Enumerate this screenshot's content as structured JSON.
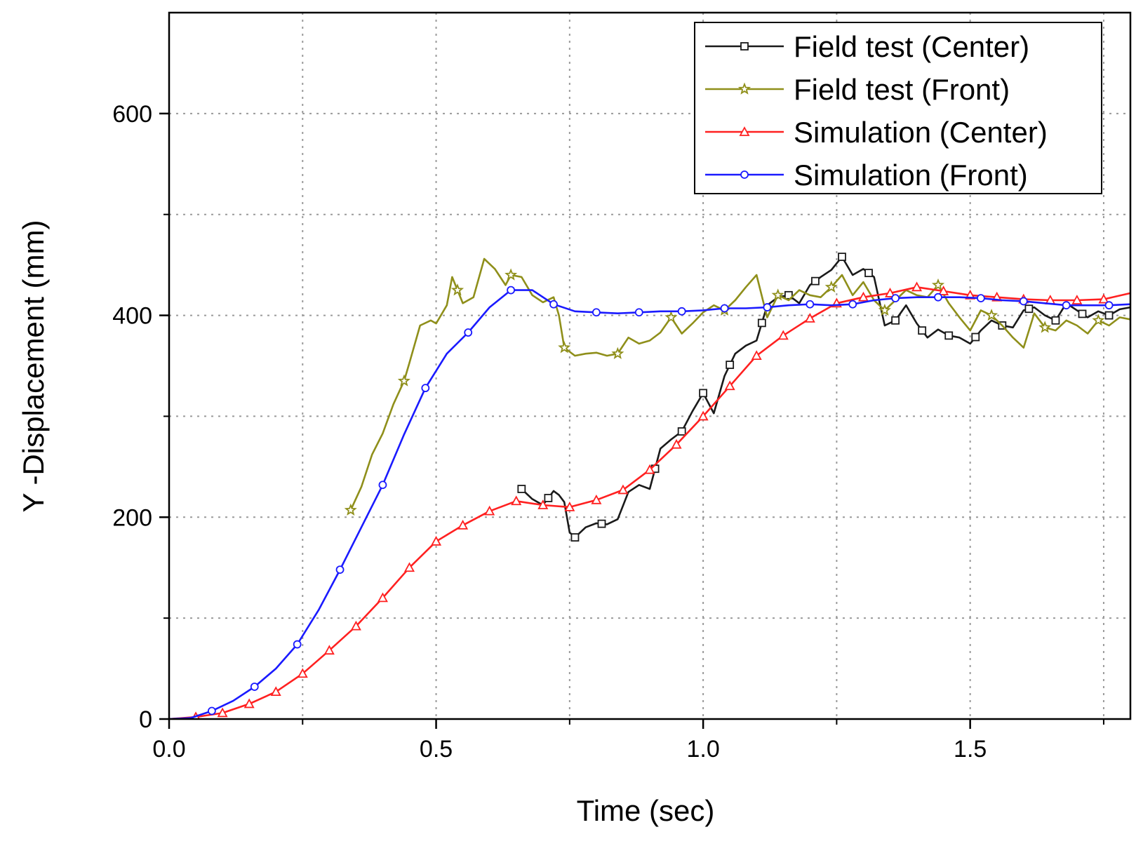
{
  "chart_data": {
    "type": "line",
    "title": "",
    "xlabel": "Time (sec)",
    "ylabel": "Y -Displacement (mm)",
    "xlim": [
      0.0,
      1.8
    ],
    "ylim": [
      0,
      700
    ],
    "x_ticks": [
      0.0,
      0.5,
      1.0,
      1.5
    ],
    "x_tick_labels": [
      "0.0",
      "0.5",
      "1.0",
      "1.5"
    ],
    "x_minor_ticks": [
      0.25,
      0.75,
      1.25,
      1.75
    ],
    "y_ticks": [
      0,
      200,
      400,
      600
    ],
    "y_tick_labels": [
      "0",
      "200",
      "400",
      "600"
    ],
    "y_minor_ticks": [
      100,
      300,
      500
    ],
    "grid": true,
    "legend_position": "top-right",
    "series": [
      {
        "name": "Field test (Center)",
        "color": "#1a1a1a",
        "marker": "square",
        "points": [
          [
            0.66,
            228
          ],
          [
            0.68,
            218
          ],
          [
            0.7,
            212
          ],
          [
            0.72,
            226
          ],
          [
            0.73,
            222
          ],
          [
            0.74,
            215
          ],
          [
            0.75,
            185
          ],
          [
            0.76,
            180
          ],
          [
            0.78,
            190
          ],
          [
            0.8,
            194
          ],
          [
            0.82,
            193
          ],
          [
            0.84,
            198
          ],
          [
            0.86,
            225
          ],
          [
            0.88,
            232
          ],
          [
            0.9,
            228
          ],
          [
            0.92,
            268
          ],
          [
            0.94,
            277
          ],
          [
            0.96,
            285
          ],
          [
            0.98,
            305
          ],
          [
            1.0,
            323
          ],
          [
            1.02,
            303
          ],
          [
            1.04,
            340
          ],
          [
            1.06,
            362
          ],
          [
            1.08,
            370
          ],
          [
            1.1,
            375
          ],
          [
            1.12,
            410
          ],
          [
            1.14,
            418
          ],
          [
            1.16,
            420
          ],
          [
            1.18,
            412
          ],
          [
            1.2,
            430
          ],
          [
            1.22,
            438
          ],
          [
            1.24,
            445
          ],
          [
            1.26,
            458
          ],
          [
            1.28,
            440
          ],
          [
            1.3,
            446
          ],
          [
            1.32,
            438
          ],
          [
            1.34,
            390
          ],
          [
            1.36,
            395
          ],
          [
            1.38,
            410
          ],
          [
            1.4,
            392
          ],
          [
            1.42,
            378
          ],
          [
            1.44,
            386
          ],
          [
            1.46,
            380
          ],
          [
            1.48,
            378
          ],
          [
            1.5,
            372
          ],
          [
            1.52,
            385
          ],
          [
            1.54,
            395
          ],
          [
            1.56,
            390
          ],
          [
            1.58,
            388
          ],
          [
            1.6,
            405
          ],
          [
            1.62,
            408
          ],
          [
            1.64,
            400
          ],
          [
            1.66,
            395
          ],
          [
            1.68,
            412
          ],
          [
            1.7,
            405
          ],
          [
            1.72,
            398
          ],
          [
            1.74,
            404
          ],
          [
            1.76,
            400
          ],
          [
            1.78,
            406
          ],
          [
            1.8,
            408
          ]
        ],
        "marker_x": [
          0.66,
          0.71,
          0.76,
          0.81,
          0.91,
          0.96,
          1.0,
          1.05,
          1.11,
          1.16,
          1.21,
          1.26,
          1.31,
          1.36,
          1.41,
          1.46,
          1.51,
          1.56,
          1.61,
          1.66,
          1.71,
          1.76
        ]
      },
      {
        "name": "Field test (Front)",
        "color": "#8f8f1a",
        "marker": "star",
        "points": [
          [
            0.34,
            207
          ],
          [
            0.36,
            230
          ],
          [
            0.38,
            262
          ],
          [
            0.4,
            283
          ],
          [
            0.42,
            312
          ],
          [
            0.44,
            335
          ],
          [
            0.45,
            353
          ],
          [
            0.47,
            390
          ],
          [
            0.49,
            395
          ],
          [
            0.5,
            392
          ],
          [
            0.52,
            410
          ],
          [
            0.53,
            438
          ],
          [
            0.55,
            412
          ],
          [
            0.57,
            418
          ],
          [
            0.59,
            456
          ],
          [
            0.61,
            446
          ],
          [
            0.63,
            430
          ],
          [
            0.64,
            440
          ],
          [
            0.66,
            438
          ],
          [
            0.68,
            420
          ],
          [
            0.7,
            413
          ],
          [
            0.72,
            418
          ],
          [
            0.73,
            400
          ],
          [
            0.74,
            368
          ],
          [
            0.76,
            360
          ],
          [
            0.78,
            362
          ],
          [
            0.8,
            363
          ],
          [
            0.82,
            360
          ],
          [
            0.84,
            362
          ],
          [
            0.86,
            378
          ],
          [
            0.88,
            372
          ],
          [
            0.9,
            375
          ],
          [
            0.92,
            383
          ],
          [
            0.94,
            398
          ],
          [
            0.96,
            382
          ],
          [
            0.98,
            392
          ],
          [
            1.0,
            403
          ],
          [
            1.02,
            410
          ],
          [
            1.04,
            405
          ],
          [
            1.06,
            415
          ],
          [
            1.08,
            428
          ],
          [
            1.1,
            440
          ],
          [
            1.12,
            398
          ],
          [
            1.14,
            420
          ],
          [
            1.16,
            415
          ],
          [
            1.18,
            425
          ],
          [
            1.2,
            420
          ],
          [
            1.22,
            418
          ],
          [
            1.24,
            428
          ],
          [
            1.26,
            440
          ],
          [
            1.28,
            420
          ],
          [
            1.3,
            433
          ],
          [
            1.32,
            415
          ],
          [
            1.34,
            405
          ],
          [
            1.36,
            415
          ],
          [
            1.38,
            425
          ],
          [
            1.4,
            420
          ],
          [
            1.42,
            418
          ],
          [
            1.44,
            430
          ],
          [
            1.46,
            412
          ],
          [
            1.48,
            398
          ],
          [
            1.5,
            385
          ],
          [
            1.52,
            405
          ],
          [
            1.54,
            400
          ],
          [
            1.56,
            390
          ],
          [
            1.58,
            378
          ],
          [
            1.6,
            368
          ],
          [
            1.62,
            402
          ],
          [
            1.64,
            388
          ],
          [
            1.66,
            385
          ],
          [
            1.68,
            395
          ],
          [
            1.7,
            390
          ],
          [
            1.72,
            382
          ],
          [
            1.74,
            395
          ],
          [
            1.76,
            390
          ],
          [
            1.78,
            398
          ],
          [
            1.8,
            396
          ]
        ],
        "marker_x": [
          0.34,
          0.44,
          0.54,
          0.64,
          0.74,
          0.84,
          0.94,
          1.04,
          1.14,
          1.24,
          1.34,
          1.44,
          1.54,
          1.64,
          1.74
        ]
      },
      {
        "name": "Simulation (Center)",
        "color": "#ff2020",
        "marker": "triangle",
        "points": [
          [
            0.0,
            0
          ],
          [
            0.05,
            2
          ],
          [
            0.1,
            6
          ],
          [
            0.15,
            15
          ],
          [
            0.2,
            27
          ],
          [
            0.25,
            45
          ],
          [
            0.3,
            68
          ],
          [
            0.35,
            92
          ],
          [
            0.4,
            120
          ],
          [
            0.45,
            150
          ],
          [
            0.5,
            176
          ],
          [
            0.55,
            192
          ],
          [
            0.6,
            206
          ],
          [
            0.65,
            216
          ],
          [
            0.7,
            212
          ],
          [
            0.75,
            210
          ],
          [
            0.8,
            217
          ],
          [
            0.85,
            227
          ],
          [
            0.9,
            247
          ],
          [
            0.95,
            272
          ],
          [
            1.0,
            300
          ],
          [
            1.05,
            330
          ],
          [
            1.1,
            360
          ],
          [
            1.15,
            380
          ],
          [
            1.2,
            397
          ],
          [
            1.25,
            412
          ],
          [
            1.3,
            418
          ],
          [
            1.35,
            422
          ],
          [
            1.4,
            428
          ],
          [
            1.45,
            424
          ],
          [
            1.5,
            420
          ],
          [
            1.55,
            418
          ],
          [
            1.6,
            416
          ],
          [
            1.65,
            415
          ],
          [
            1.7,
            415
          ],
          [
            1.75,
            416
          ],
          [
            1.8,
            422
          ]
        ],
        "marker_x": [
          0.05,
          0.1,
          0.15,
          0.2,
          0.25,
          0.3,
          0.35,
          0.4,
          0.45,
          0.5,
          0.55,
          0.6,
          0.65,
          0.7,
          0.75,
          0.8,
          0.85,
          0.9,
          0.95,
          1.0,
          1.05,
          1.1,
          1.15,
          1.2,
          1.25,
          1.3,
          1.35,
          1.4,
          1.45,
          1.5,
          1.55,
          1.6,
          1.65,
          1.7,
          1.75
        ]
      },
      {
        "name": "Simulation (Front)",
        "color": "#1a1aff",
        "marker": "circle",
        "points": [
          [
            0.0,
            0
          ],
          [
            0.04,
            1
          ],
          [
            0.08,
            8
          ],
          [
            0.12,
            18
          ],
          [
            0.16,
            32
          ],
          [
            0.2,
            50
          ],
          [
            0.24,
            74
          ],
          [
            0.28,
            108
          ],
          [
            0.32,
            148
          ],
          [
            0.36,
            190
          ],
          [
            0.4,
            232
          ],
          [
            0.44,
            282
          ],
          [
            0.48,
            328
          ],
          [
            0.52,
            362
          ],
          [
            0.56,
            383
          ],
          [
            0.6,
            408
          ],
          [
            0.64,
            425
          ],
          [
            0.68,
            425
          ],
          [
            0.72,
            411
          ],
          [
            0.76,
            404
          ],
          [
            0.8,
            403
          ],
          [
            0.84,
            402
          ],
          [
            0.88,
            403
          ],
          [
            0.92,
            404
          ],
          [
            0.96,
            404
          ],
          [
            1.0,
            405
          ],
          [
            1.04,
            407
          ],
          [
            1.08,
            407
          ],
          [
            1.12,
            408
          ],
          [
            1.16,
            410
          ],
          [
            1.2,
            411
          ],
          [
            1.24,
            410
          ],
          [
            1.28,
            411
          ],
          [
            1.32,
            415
          ],
          [
            1.36,
            417
          ],
          [
            1.4,
            418
          ],
          [
            1.44,
            418
          ],
          [
            1.48,
            418
          ],
          [
            1.52,
            417
          ],
          [
            1.56,
            415
          ],
          [
            1.6,
            414
          ],
          [
            1.64,
            412
          ],
          [
            1.68,
            410
          ],
          [
            1.72,
            410
          ],
          [
            1.76,
            410
          ],
          [
            1.8,
            411
          ]
        ],
        "marker_x": [
          0.08,
          0.16,
          0.24,
          0.32,
          0.4,
          0.48,
          0.56,
          0.64,
          0.72,
          0.8,
          0.88,
          0.96,
          1.04,
          1.12,
          1.2,
          1.28,
          1.36,
          1.44,
          1.52,
          1.6,
          1.68,
          1.76
        ]
      }
    ]
  }
}
